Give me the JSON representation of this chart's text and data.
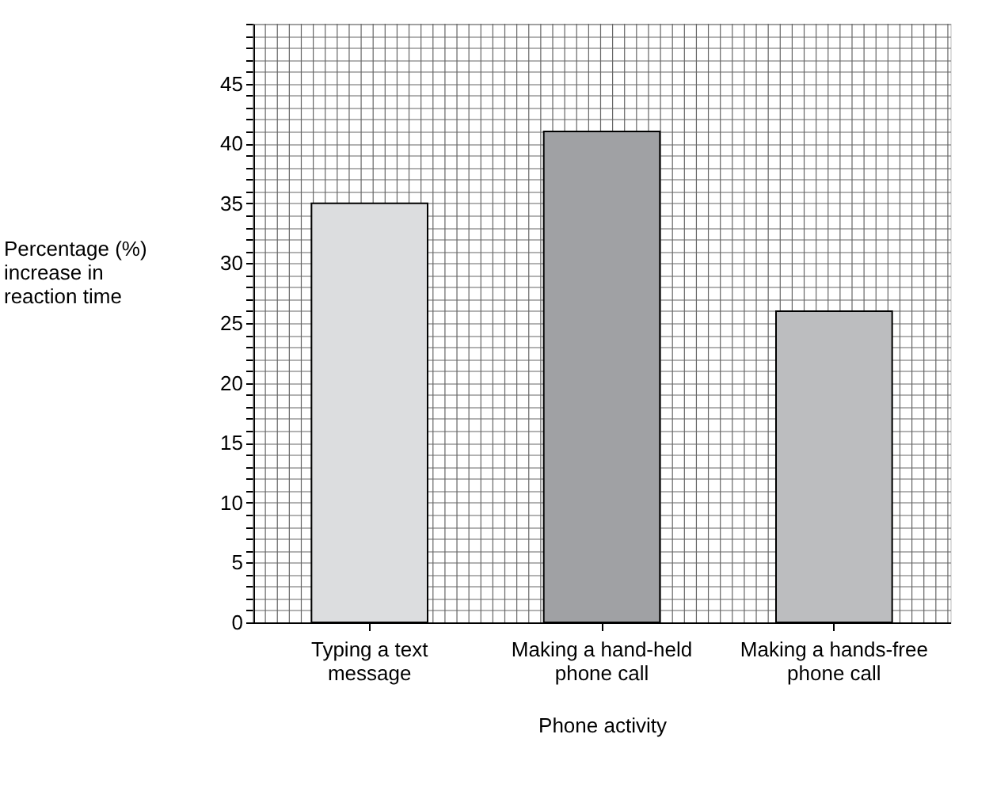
{
  "chart_data": {
    "type": "bar",
    "xlabel": "Phone activity",
    "ylabel": "Percentage (%)\nincrease in\nreaction time",
    "categories": [
      "Typing a text message",
      "Making a hand-held phone call",
      "Making a hands-free phone call"
    ],
    "values": [
      35,
      41,
      26
    ],
    "colors": [
      "#dcdddf",
      "#a0a1a4",
      "#bcbdbf"
    ],
    "ylim": [
      0,
      50
    ],
    "yticks": [
      0,
      {
        "value": 1,
        "label": null
      },
      {
        "value": 2,
        "label": null
      },
      {
        "value": 3,
        "label": null
      },
      {
        "value": 4,
        "label": null
      },
      5,
      {
        "value": 6,
        "label": null
      },
      {
        "value": 7,
        "label": null
      },
      {
        "value": 8,
        "label": null
      },
      {
        "value": 9,
        "label": null
      },
      10,
      {
        "value": 11,
        "label": null
      },
      {
        "value": 12,
        "label": null
      },
      {
        "value": 13,
        "label": null
      },
      {
        "value": 14,
        "label": null
      },
      15,
      {
        "value": 16,
        "label": null
      },
      {
        "value": 17,
        "label": null
      },
      {
        "value": 18,
        "label": null
      },
      {
        "value": 19,
        "label": null
      },
      20,
      {
        "value": 21,
        "label": null
      },
      {
        "value": 22,
        "label": null
      },
      {
        "value": 23,
        "label": null
      },
      {
        "value": 24,
        "label": null
      },
      25,
      {
        "value": 26,
        "label": null
      },
      {
        "value": 27,
        "label": null
      },
      {
        "value": 28,
        "label": null
      },
      {
        "value": 29,
        "label": null
      },
      30,
      {
        "value": 31,
        "label": null
      },
      {
        "value": 32,
        "label": null
      },
      {
        "value": 33,
        "label": null
      },
      {
        "value": 34,
        "label": null
      },
      35,
      {
        "value": 36,
        "label": null
      },
      {
        "value": 37,
        "label": null
      },
      {
        "value": 38,
        "label": null
      },
      {
        "value": 39,
        "label": null
      },
      40,
      {
        "value": 41,
        "label": null
      },
      {
        "value": 42,
        "label": null
      },
      {
        "value": 43,
        "label": null
      },
      {
        "value": 44,
        "label": null
      },
      45,
      {
        "value": 46,
        "label": null
      },
      {
        "value": 47,
        "label": null
      },
      {
        "value": 48,
        "label": null
      },
      {
        "value": 49,
        "label": null
      },
      {
        "value": 50,
        "label": null
      }
    ],
    "grid": true
  }
}
